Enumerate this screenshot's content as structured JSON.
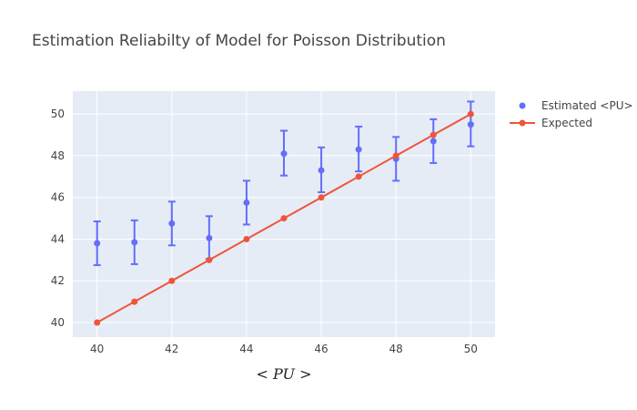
{
  "chart_data": {
    "type": "scatter",
    "title": "Estimation Reliabilty of Model for Poisson Distribution",
    "xlabel": "< PU >",
    "ylabel": "",
    "xlim": [
      39.35,
      50.65
    ],
    "ylim": [
      39.3,
      51.1
    ],
    "xticks": [
      40,
      42,
      44,
      46,
      48,
      50
    ],
    "yticks": [
      40,
      42,
      44,
      46,
      48,
      50
    ],
    "grid": true,
    "legend_position": "top-right",
    "series": [
      {
        "name": "Estimated <PU>",
        "mode": "markers",
        "color": "#636efa",
        "x": [
          40,
          41,
          42,
          43,
          44,
          45,
          46,
          47,
          48,
          49,
          50
        ],
        "y": [
          43.8,
          43.85,
          44.75,
          44.05,
          45.75,
          48.1,
          47.3,
          48.3,
          47.85,
          48.7,
          49.5
        ],
        "error_minus": [
          1.05,
          1.05,
          1.05,
          1.0,
          1.05,
          1.05,
          1.05,
          1.05,
          1.05,
          1.05,
          1.05
        ],
        "error_plus": [
          1.05,
          1.05,
          1.05,
          1.05,
          1.05,
          1.1,
          1.1,
          1.1,
          1.05,
          1.05,
          1.1
        ]
      },
      {
        "name": "Expected",
        "mode": "lines+markers",
        "color": "#ef553b",
        "x": [
          40,
          41,
          42,
          43,
          44,
          45,
          46,
          47,
          48,
          49,
          50
        ],
        "y": [
          40,
          41,
          42,
          43,
          44,
          45,
          46,
          47,
          48,
          49,
          50
        ]
      }
    ]
  }
}
